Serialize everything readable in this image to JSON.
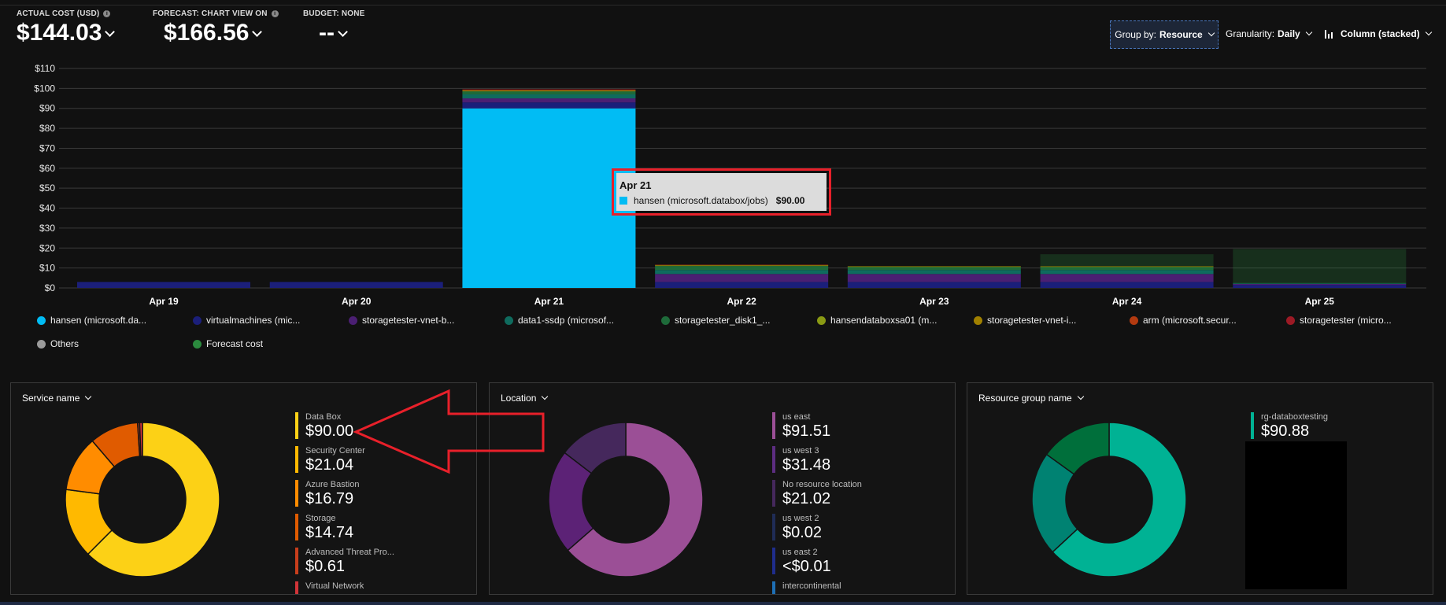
{
  "metrics": [
    {
      "label": "ACTUAL COST (USD)",
      "value": "$144.03",
      "has_info": true
    },
    {
      "label": "FORECAST: CHART VIEW ON",
      "value": "$166.56",
      "has_info": true
    },
    {
      "label": "BUDGET: NONE",
      "value": "--",
      "has_info": false
    }
  ],
  "controls": {
    "group_by_label": "Group by:",
    "group_by_value": "Resource",
    "granularity_label": "Granularity:",
    "granularity_value": "Daily",
    "chart_type_value": "Column (stacked)"
  },
  "chart_data": {
    "type": "bar",
    "stacked": true,
    "categories": [
      "Apr 19",
      "Apr 20",
      "Apr 21",
      "Apr 22",
      "Apr 23",
      "Apr 24",
      "Apr 25"
    ],
    "y_ticks": [
      "$0",
      "$10",
      "$20",
      "$30",
      "$40",
      "$50",
      "$60",
      "$70",
      "$80",
      "$90",
      "$100",
      "$110"
    ],
    "ylim": [
      0,
      110
    ],
    "grid": true,
    "series": [
      {
        "name": "hansen (microsoft.da...",
        "color": "#01bcf4",
        "values": [
          0,
          0,
          90,
          0,
          0,
          0,
          0
        ]
      },
      {
        "name": "virtualmachines (mic...",
        "color": "#1b1f7a",
        "values": [
          3,
          3,
          3,
          3,
          3,
          3,
          1.5
        ]
      },
      {
        "name": "storagetester-vnet-b...",
        "color": "#4b1f73",
        "values": [
          0,
          0,
          2,
          4,
          4,
          4,
          0.5
        ]
      },
      {
        "name": "data1-ssdp (microsof...",
        "color": "#0f6b5e",
        "values": [
          0,
          0,
          2,
          2,
          2,
          2,
          0.3
        ]
      },
      {
        "name": "storagetester_disk1_...",
        "color": "#1e6b3a",
        "values": [
          0,
          0,
          1.5,
          2,
          1.5,
          1.5,
          0.2
        ]
      },
      {
        "name": "hansendataboxsa01 (m...",
        "color": "#8a9a14",
        "values": [
          0,
          0,
          0.3,
          0.2,
          0.2,
          0.2,
          0
        ]
      },
      {
        "name": "storagetester-vnet-i...",
        "color": "#a08000",
        "values": [
          0,
          0,
          0.2,
          0.2,
          0.2,
          0.2,
          0
        ]
      },
      {
        "name": "arm (microsoft.secur...",
        "color": "#b33a10",
        "values": [
          0,
          0,
          0.3,
          0.2,
          0,
          0,
          0
        ]
      },
      {
        "name": "storagetester (micro...",
        "color": "#9c1a25",
        "values": [
          0,
          0,
          0.2,
          0,
          0,
          0,
          0
        ]
      },
      {
        "name": "Others",
        "color": "#9b9b9b",
        "values": [
          0,
          0,
          0,
          0,
          0,
          0,
          0
        ]
      },
      {
        "name": "Forecast cost",
        "color": "#2b8a3e",
        "values": [
          0,
          0,
          0,
          0,
          0,
          6,
          17
        ]
      }
    ],
    "legend_placement": "bottom"
  },
  "tooltip": {
    "date": "Apr 21",
    "item": "hansen (microsoft.databox/jobs)",
    "value": "$90.00"
  },
  "panels": [
    {
      "title": "Service name",
      "items": [
        {
          "label": "Data Box",
          "value": "$90.00",
          "color": "#fcd116"
        },
        {
          "label": "Security Center",
          "value": "$21.04",
          "color": "#ffb900"
        },
        {
          "label": "Azure Bastion",
          "value": "$16.79",
          "color": "#ff8c00"
        },
        {
          "label": "Storage",
          "value": "$14.74",
          "color": "#e05b00"
        },
        {
          "label": "Advanced Threat Pro...",
          "value": "$0.61",
          "color": "#c83e1c"
        },
        {
          "label": "Virtual Network",
          "value": "",
          "color": "#d13438"
        }
      ],
      "donut": [
        {
          "value": 90.0,
          "color": "#fcd116"
        },
        {
          "value": 21.04,
          "color": "#ffb900"
        },
        {
          "value": 16.79,
          "color": "#ff8c00"
        },
        {
          "value": 14.74,
          "color": "#e05b00"
        },
        {
          "value": 0.61,
          "color": "#c83e1c"
        },
        {
          "value": 0.85,
          "color": "#d13438"
        }
      ]
    },
    {
      "title": "Location",
      "items": [
        {
          "label": "us east",
          "value": "$91.51",
          "color": "#9b4f96"
        },
        {
          "label": "us west 3",
          "value": "$31.48",
          "color": "#5c2d81"
        },
        {
          "label": "No resource location",
          "value": "$21.02",
          "color": "#45285c"
        },
        {
          "label": "us west 2",
          "value": "$0.02",
          "color": "#1f2c56"
        },
        {
          "label": "us east 2",
          "value": "<$0.01",
          "color": "#1f2d8c"
        },
        {
          "label": "intercontinental",
          "value": "",
          "color": "#1e6fb5"
        }
      ],
      "donut": [
        {
          "value": 91.51,
          "color": "#9b4f96"
        },
        {
          "value": 31.48,
          "color": "#5c2276"
        },
        {
          "value": 21.02,
          "color": "#45285c"
        }
      ]
    },
    {
      "title": "Resource group name",
      "items": [
        {
          "label": "rg-databoxtesting",
          "value": "$90.88",
          "color": "#00b294"
        }
      ],
      "donut": [
        {
          "value": 90.88,
          "color": "#00b294"
        },
        {
          "value": 31.5,
          "color": "#008272"
        },
        {
          "value": 21.65,
          "color": "#006f3b"
        }
      ]
    }
  ]
}
